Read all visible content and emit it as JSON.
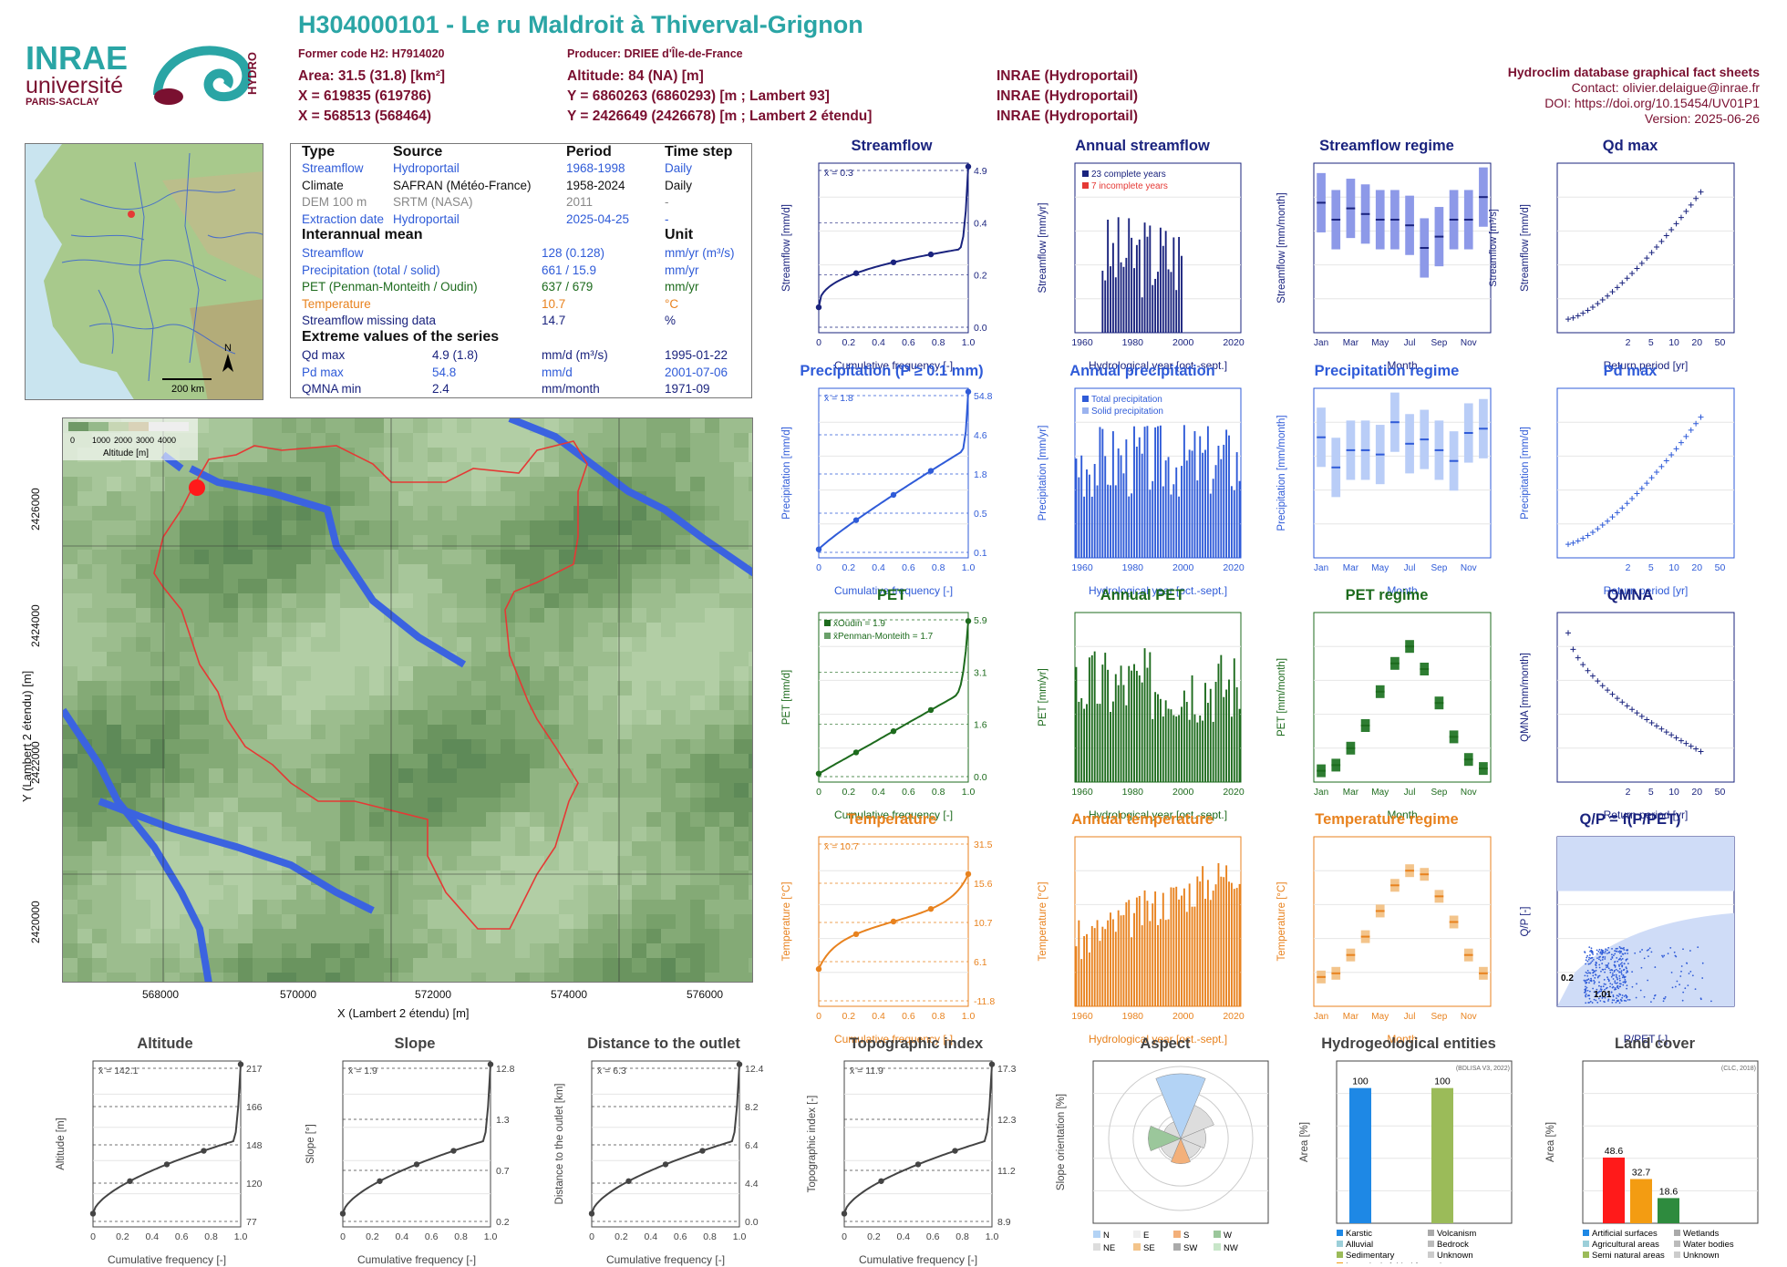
{
  "header": {
    "title": "H304000101 - Le ru Maldroit à Thiverval-Grignon",
    "former_code": "Former code H2: H7914020",
    "producer": "Producer: DRIEE d'Île-de-France",
    "area": "Area: 31.5 (31.8) [km²]",
    "altitude": "Altitude: 84 (NA) [m]",
    "x93": "X = 619835 (619786)",
    "y93": "Y = 6860263 (6860293) [m ; Lambert 93]",
    "x2": "X = 568513 (568464)",
    "y2": "Y = 2426649 (2426678) [m ; Lambert 2 étendu]",
    "src1": "INRAE (Hydroportail)",
    "src2": "INRAE (Hydroportail)",
    "src3": "INRAE (Hydroportail)",
    "db_title": "Hydroclim database graphical fact sheets",
    "contact": "Contact: olivier.delaigue@inrae.fr",
    "doi": "DOI: https://doi.org/10.15454/UV01P1",
    "version": "Version: 2025-06-26",
    "logo_inrae": "INRAE",
    "logo_univ": "université",
    "logo_ps": "PARIS-SACLAY",
    "logo_hydro": "HYDRO"
  },
  "meta_table": {
    "headers": [
      "Type",
      "Source",
      "Period",
      "Time step"
    ],
    "rows": [
      [
        "Streamflow",
        "Hydroportail",
        "1968-1998",
        "Daily"
      ],
      [
        "Climate",
        "SAFRAN (Météo-France)",
        "1958-2024",
        "Daily"
      ],
      [
        "DEM 100 m",
        "SRTM (NASA)",
        "2011",
        "-"
      ],
      [
        "Extraction date",
        "Hydroportail",
        "2025-04-25",
        "-"
      ]
    ],
    "interannual_title": "Interannual mean",
    "unit_title": "Unit",
    "interannual": [
      [
        "Streamflow",
        "128 (0.128)",
        "mm/yr (m³/s)"
      ],
      [
        "Precipitation (total / solid)",
        "661 / 15.9",
        "mm/yr"
      ],
      [
        "PET (Penman-Monteith / Oudin)",
        "637 / 679",
        "mm/yr"
      ],
      [
        "Temperature",
        "10.7",
        "°C"
      ],
      [
        "Streamflow missing data",
        "14.7",
        "%"
      ]
    ],
    "extreme_title": "Extreme values of the series",
    "extremes": [
      [
        "Qd max",
        "4.9 (1.8)",
        "mm/d (m³/s)",
        "1995-01-22"
      ],
      [
        "Pd max",
        "54.8",
        "mm/d",
        "2001-07-06"
      ],
      [
        "QMNA min",
        "2.4",
        "mm/month",
        "1971-09"
      ]
    ]
  },
  "map": {
    "scale": "200 km",
    "north": "N",
    "legend_title": "Altitude [m]",
    "legend_ticks": [
      "0",
      "1000",
      "2000",
      "3000",
      "4000"
    ],
    "xlabel": "X (Lambert 2 étendu) [m]",
    "ylabel": "Y (Lambert 2 étendu) [m]",
    "xticks": [
      "568000",
      "570000",
      "572000",
      "574000",
      "576000"
    ],
    "yticks": [
      "2420000",
      "2422000",
      "2424000",
      "2426000"
    ]
  },
  "chart_data": [
    {
      "id": "streamflow",
      "type": "line",
      "title": "Streamflow",
      "ylabel": "Streamflow [mm/d]",
      "xlabel": "Cumulative frequency [-]",
      "log": true,
      "mean_label": "x̄ = 0.3",
      "right_ticks": [
        "4.9",
        "0.4",
        "0.2",
        "0.0"
      ],
      "points": [
        [
          0,
          0.03
        ],
        [
          0.25,
          0.2
        ],
        [
          0.5,
          0.25
        ],
        [
          0.75,
          0.4
        ],
        [
          1,
          4.9
        ]
      ],
      "color": "#1a237e"
    },
    {
      "id": "annual_streamflow",
      "type": "bar",
      "title": "Annual streamflow",
      "ylabel": "Streamflow [mm/yr]",
      "xlabel": "Hydrological year [oct.-sept.]",
      "legend": [
        "23 complete years",
        "7 incomplete years"
      ],
      "ylim": [
        0,
        300
      ],
      "color": "#1a237e"
    },
    {
      "id": "streamflow_regime",
      "type": "box",
      "title": "Streamflow regime",
      "ylabel": "Streamflow [mm/month]",
      "ylabel2": "Streamflow [m³/s]",
      "xlabel": "Month",
      "categories": [
        "Jan",
        "Mar",
        "May",
        "Jul",
        "Sep",
        "Nov"
      ],
      "values": [
        11.5,
        10,
        11,
        10.5,
        10,
        10,
        9.5,
        7.5,
        8.5,
        10,
        10,
        12
      ],
      "color": "#1a237e"
    },
    {
      "id": "qd_max",
      "type": "scatter",
      "title": "Qd max",
      "ylabel": "Streamflow [mm/d]",
      "xlabel": "Return period [yr]",
      "xticks": [
        "2",
        "5",
        "10",
        "20",
        "50"
      ],
      "color": "#1a237e"
    },
    {
      "id": "precipitation",
      "type": "line",
      "title": "Precipitation (P ≥ 0.1 mm)",
      "ylabel": "Precipitation [mm/d]",
      "xlabel": "Cumulative frequency [-]",
      "mean_label": "x̄ = 1.8",
      "right_ticks": [
        "54.8",
        "4.6",
        "1.8",
        "0.5",
        "0.1"
      ],
      "color": "#2f5bd8"
    },
    {
      "id": "annual_precipitation",
      "type": "bar",
      "title": "Annual precipitation",
      "ylabel": "Precipitation [mm/yr]",
      "xlabel": "Hydrological year [oct.-sept.]",
      "legend": [
        "Total precipitation",
        "Solid precipitation"
      ],
      "color": "#2f5bd8"
    },
    {
      "id": "precipitation_regime",
      "type": "box",
      "title": "Precipitation regime",
      "ylabel": "Precipitation [mm/month]",
      "xlabel": "Month",
      "categories": [
        "Jan",
        "Mar",
        "May",
        "Jul",
        "Sep",
        "Nov"
      ],
      "values": [
        56,
        42,
        50,
        50,
        48,
        63,
        53,
        55,
        50,
        45,
        58,
        60
      ],
      "color": "#2f5bd8"
    },
    {
      "id": "pd_max",
      "type": "scatter",
      "title": "Pd max",
      "ylabel": "Precipitation [mm/d]",
      "xlabel": "Return period [yr]",
      "xticks": [
        "2",
        "5",
        "10",
        "20",
        "50"
      ],
      "color": "#2f5bd8"
    },
    {
      "id": "pet",
      "type": "line",
      "title": "PET",
      "ylabel": "PET [mm/d]",
      "xlabel": "Cumulative frequency [-]",
      "legend": [
        "x̄Oudin = 1.9",
        "x̄Penman-Monteith = 1.7"
      ],
      "right_ticks": [
        "5.9",
        "3.1",
        "1.6",
        "0.0"
      ],
      "color": "#1d6b1d"
    },
    {
      "id": "annual_pet",
      "type": "bar",
      "title": "Annual PET",
      "ylabel": "PET [mm/yr]",
      "xlabel": "Hydrological year [oct.-sept.]",
      "color": "#1d6b1d"
    },
    {
      "id": "pet_regime",
      "type": "box",
      "title": "PET regime",
      "ylabel": "PET [mm/month]",
      "xlabel": "Month",
      "categories": [
        "Jan",
        "Mar",
        "May",
        "Jul",
        "Sep",
        "Nov"
      ],
      "values": [
        10,
        15,
        30,
        50,
        80,
        105,
        120,
        100,
        70,
        40,
        20,
        12
      ],
      "color": "#1d6b1d"
    },
    {
      "id": "qmna",
      "type": "scatter",
      "title": "QMNA",
      "ylabel": "QMNA [mm/month]",
      "xlabel": "Return period [yr]",
      "xticks": [
        "2",
        "5",
        "10",
        "20",
        "50"
      ],
      "color": "#1a237e"
    },
    {
      "id": "temperature",
      "type": "line",
      "title": "Temperature",
      "ylabel": "Temperature [°C]",
      "xlabel": "Cumulative frequency [-]",
      "mean_label": "x̄ = 10.7",
      "right_ticks": [
        "31.5",
        "15.6",
        "10.7",
        "6.1",
        "-11.8"
      ],
      "color": "#e8821e"
    },
    {
      "id": "annual_temperature",
      "type": "bar",
      "title": "Annual temperature",
      "ylabel": "Temperature [°C]",
      "xlabel": "Hydrological year [oct.-sept.]",
      "color": "#e8821e"
    },
    {
      "id": "temperature_regime",
      "type": "box",
      "title": "Temperature regime",
      "ylabel": "Temperature [°C]",
      "xlabel": "Month",
      "categories": [
        "Jan",
        "Mar",
        "May",
        "Jul",
        "Sep",
        "Nov"
      ],
      "values": [
        4,
        4.5,
        7,
        9.5,
        13,
        16.5,
        18.5,
        18,
        15,
        11.5,
        7,
        4.5
      ],
      "color": "#e8821e"
    },
    {
      "id": "qp_ppet",
      "type": "scatter",
      "title": "Q/P = f(P/PET)",
      "ylabel": "Q/P [-]",
      "xlabel": "P/PET [-]",
      "labels": [
        "0.2",
        "1.01"
      ],
      "color": "#1a237e"
    },
    {
      "id": "altitude",
      "type": "line",
      "title": "Altitude",
      "ylabel": "Altitude [m]",
      "xlabel": "Cumulative frequency [-]",
      "mean_label": "x̄ = 142.1",
      "right_ticks": [
        "217",
        "166",
        "148",
        "120",
        "77"
      ],
      "color": "#444"
    },
    {
      "id": "slope",
      "type": "line",
      "title": "Slope",
      "ylabel": "Slope [°]",
      "xlabel": "Cumulative frequency [-]",
      "mean_label": "x̄ = 1.9",
      "right_ticks": [
        "12.8",
        "1.3",
        "0.7",
        "0.2"
      ],
      "color": "#444"
    },
    {
      "id": "distance",
      "type": "line",
      "title": "Distance to the outlet",
      "ylabel": "Distance to the outlet [km]",
      "xlabel": "Cumulative frequency [-]",
      "mean_label": "x̄ = 6.3",
      "right_ticks": [
        "12.4",
        "8.2",
        "6.4",
        "4.4",
        "0.0"
      ],
      "color": "#444"
    },
    {
      "id": "topo",
      "type": "line",
      "title": "Topographic index",
      "ylabel": "Topographic index [-]",
      "xlabel": "Cumulative frequency [-]",
      "mean_label": "x̄ = 11.9",
      "right_ticks": [
        "17.3",
        "12.3",
        "11.2",
        "8.9"
      ],
      "color": "#444"
    },
    {
      "id": "aspect",
      "type": "rose",
      "title": "Aspect",
      "ylabel": "Slope orientation [%]",
      "legend": [
        "N",
        "E",
        "S",
        "W",
        "NE",
        "SE",
        "SW",
        "NW"
      ]
    },
    {
      "id": "hydrogeo",
      "type": "bar",
      "title": "Hydrogeological entities",
      "ylabel": "Area [%]",
      "note": "(BDLISA V3, 2022)",
      "values": [
        100,
        100
      ],
      "labels": [
        "100",
        "100"
      ],
      "legend": [
        "Karstic",
        "Volcanism",
        "Alluvial",
        "Bedrock",
        "Sedimentary",
        "Unknown",
        "Intensively folded formation"
      ]
    },
    {
      "id": "landcover",
      "type": "bar",
      "title": "Land cover",
      "ylabel": "Area [%]",
      "note": "(CLC, 2018)",
      "values": [
        48.6,
        32.7,
        18.6
      ],
      "labels": [
        "48.6",
        "32.7",
        "18.6"
      ],
      "legend": [
        "Artificial surfaces",
        "Wetlands",
        "Agricultural areas",
        "Water bodies",
        "Semi natural areas",
        "Unknown"
      ]
    }
  ]
}
